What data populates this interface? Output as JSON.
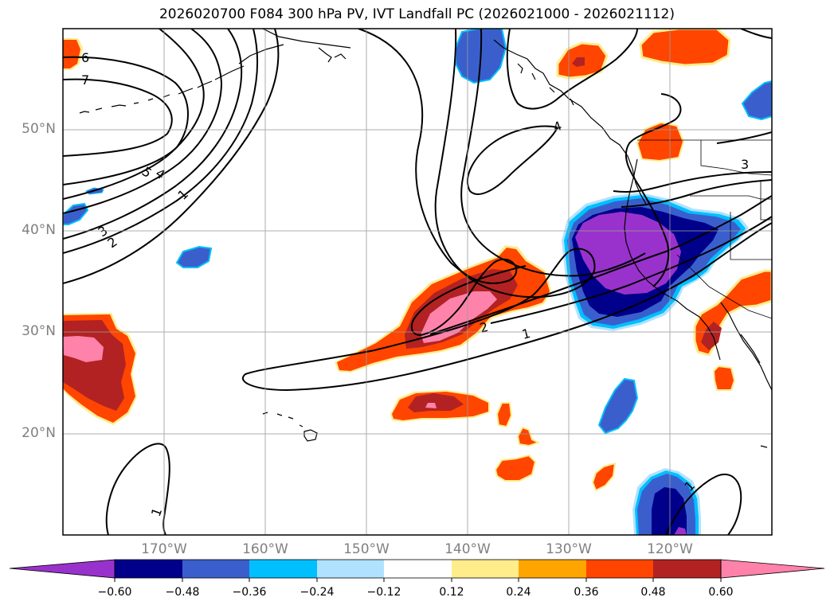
{
  "title": "2026020700 F084 300 hPa PV, IVT Landfall PC (2026021000 - 2026021112)",
  "lat_labels": [
    "50°N",
    "40°N",
    "30°N",
    "20°N"
  ],
  "lon_labels": [
    "170°W",
    "160°W",
    "150°W",
    "140°W",
    "130°W",
    "120°W"
  ],
  "contour_labels": [
    "6",
    "7",
    "5",
    "4",
    "3",
    "2",
    "1",
    "4",
    "3",
    "2",
    "1",
    "1",
    "1"
  ],
  "colorbar": {
    "ticks": [
      "−0.60",
      "−0.48",
      "−0.36",
      "−0.24",
      "−0.12",
      "0.12",
      "0.24",
      "0.36",
      "0.48",
      "0.60"
    ],
    "colors": [
      "#9932cc",
      "#00008b",
      "#3a5fcd",
      "#00bfff",
      "#b0e2ff",
      "#ffffff",
      "#ffec8b",
      "#ffa500",
      "#ff4500",
      "#b22222",
      "#ff82ab"
    ]
  },
  "colors": {
    "neg_strong": "#9932cc",
    "neg_2": "#00008b",
    "neg_3": "#3a5fcd",
    "neg_4": "#00bfff",
    "neg_5": "#b0e2ff",
    "pos_1": "#ffec8b",
    "pos_2": "#ffa500",
    "pos_3": "#ff4500",
    "pos_4": "#b22222",
    "pos_5": "#ff82ab"
  }
}
